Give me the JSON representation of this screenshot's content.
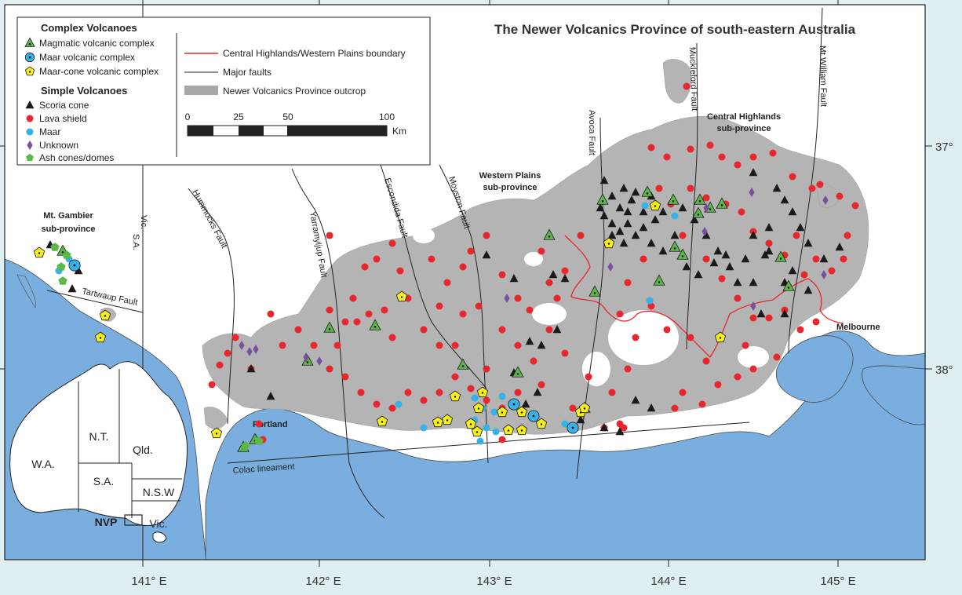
{
  "title": "The Newer Volcanics Province of south-eastern Australia",
  "legend": {
    "complex_heading": "Complex Volcanoes",
    "complex_items": [
      {
        "label": "Magmatic volcanic complex",
        "symbol": "tri-green",
        "color": "#5cb848"
      },
      {
        "label": "Maar volcanic complex",
        "symbol": "circle-blue",
        "color": "#36b2e8"
      },
      {
        "label": "Maar-cone volcanic complex",
        "symbol": "pent-yellow",
        "color": "#f7ee1e"
      }
    ],
    "simple_heading": "Simple Volcanoes",
    "simple_items": [
      {
        "label": "Scoria cone",
        "symbol": "tri-black",
        "color": "#1a1a1a"
      },
      {
        "label": "Lava shield",
        "symbol": "dot-red",
        "color": "#e8262e"
      },
      {
        "label": "Maar",
        "symbol": "dot-blue",
        "color": "#36b2e8"
      },
      {
        "label": "Unknown",
        "symbol": "diamond-purple",
        "color": "#7b4fa0"
      },
      {
        "label": "Ash cones/domes",
        "symbol": "pent-green",
        "color": "#5cb848"
      }
    ],
    "lines": [
      {
        "label": "Central Highlands/Western Plains boundary",
        "color": "#e8262e"
      },
      {
        "label": "Major faults",
        "color": "#222222"
      },
      {
        "label": "Newer Volcanics Province outcrop",
        "color": "#a8a8a8"
      }
    ],
    "scale_ticks": [
      "0",
      "25",
      "50",
      "100"
    ],
    "scale_unit": "Km"
  },
  "fault_labels": [
    "Hummocks Fault",
    "Yarramyljup Fault",
    "Escondida Fault",
    "Moyston Fault",
    "Avoca Fault",
    "Muckleford Fault",
    "Mt William Fault",
    "Tartwaup Fault",
    "Colac lineament"
  ],
  "subprovince_labels": [
    {
      "line1": "Mt. Gambier",
      "line2": "sub-province"
    },
    {
      "line1": "Western Plains",
      "line2": "sub-province"
    },
    {
      "line1": "Central Highlands",
      "line2": "sub-province"
    }
  ],
  "place_labels": [
    "Portland",
    "Melbourne"
  ],
  "border_labels": [
    "Vic.",
    "S.A."
  ],
  "inset_labels": [
    "W.A.",
    "N.T.",
    "Qld.",
    "S.A.",
    "N.S.W",
    "Vic.",
    "NVP"
  ],
  "axis": {
    "x_labels": [
      "141° E",
      "142° E",
      "143° E",
      "144° E",
      "145° E"
    ],
    "y_labels": [
      "37°",
      "38°"
    ]
  },
  "colors": {
    "sea": "#7aaede",
    "land": "#ffffff",
    "outcrop": "#b4b4b4",
    "frame": "#dfeef0",
    "boundary": "#e8262e"
  }
}
